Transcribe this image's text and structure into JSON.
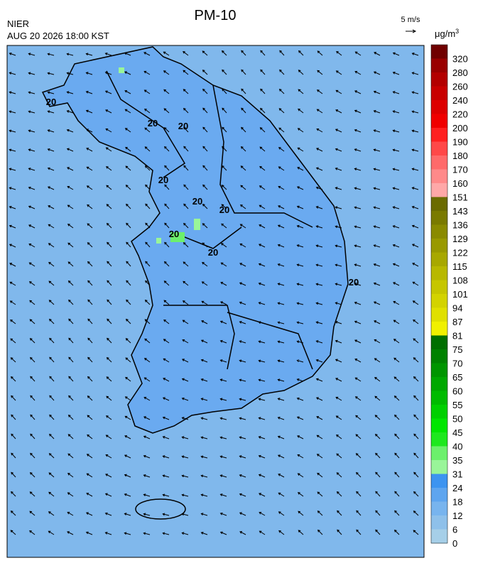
{
  "header": {
    "title": "PM-10",
    "source": "NIER",
    "datetime": "AUG 20 2026 18:00 KST",
    "wind_scale": "5 m/s"
  },
  "colorbar": {
    "unit": "μg/m",
    "unit_sup": "3",
    "labels": [
      320,
      280,
      260,
      240,
      220,
      200,
      190,
      180,
      170,
      160,
      151,
      143,
      136,
      129,
      122,
      115,
      108,
      101,
      94,
      87,
      81,
      75,
      70,
      65,
      60,
      55,
      50,
      45,
      40,
      35,
      31,
      24,
      18,
      12,
      6,
      0
    ],
    "colors": [
      "#700000",
      "#990000",
      "#b30000",
      "#c80000",
      "#dd0000",
      "#f00000",
      "#ff2020",
      "#ff4848",
      "#ff6a6a",
      "#ff8a8a",
      "#ffa8a8",
      "#6b6b00",
      "#7a7a00",
      "#8a8a00",
      "#999900",
      "#a8a800",
      "#b8b800",
      "#c6c600",
      "#d3d300",
      "#e0e000",
      "#f0f000",
      "#006f00",
      "#008200",
      "#009500",
      "#00a800",
      "#00bb00",
      "#00d000",
      "#00e600",
      "#1ee81e",
      "#6cf06c",
      "#99f599",
      "#3d94f0",
      "#5ea5ef",
      "#78b4ee",
      "#8ec0ea",
      "#a6cfe8"
    ]
  },
  "contour_labels": [
    "20",
    "20",
    "20",
    "20",
    "20",
    "20",
    "20",
    "20",
    "20"
  ]
}
